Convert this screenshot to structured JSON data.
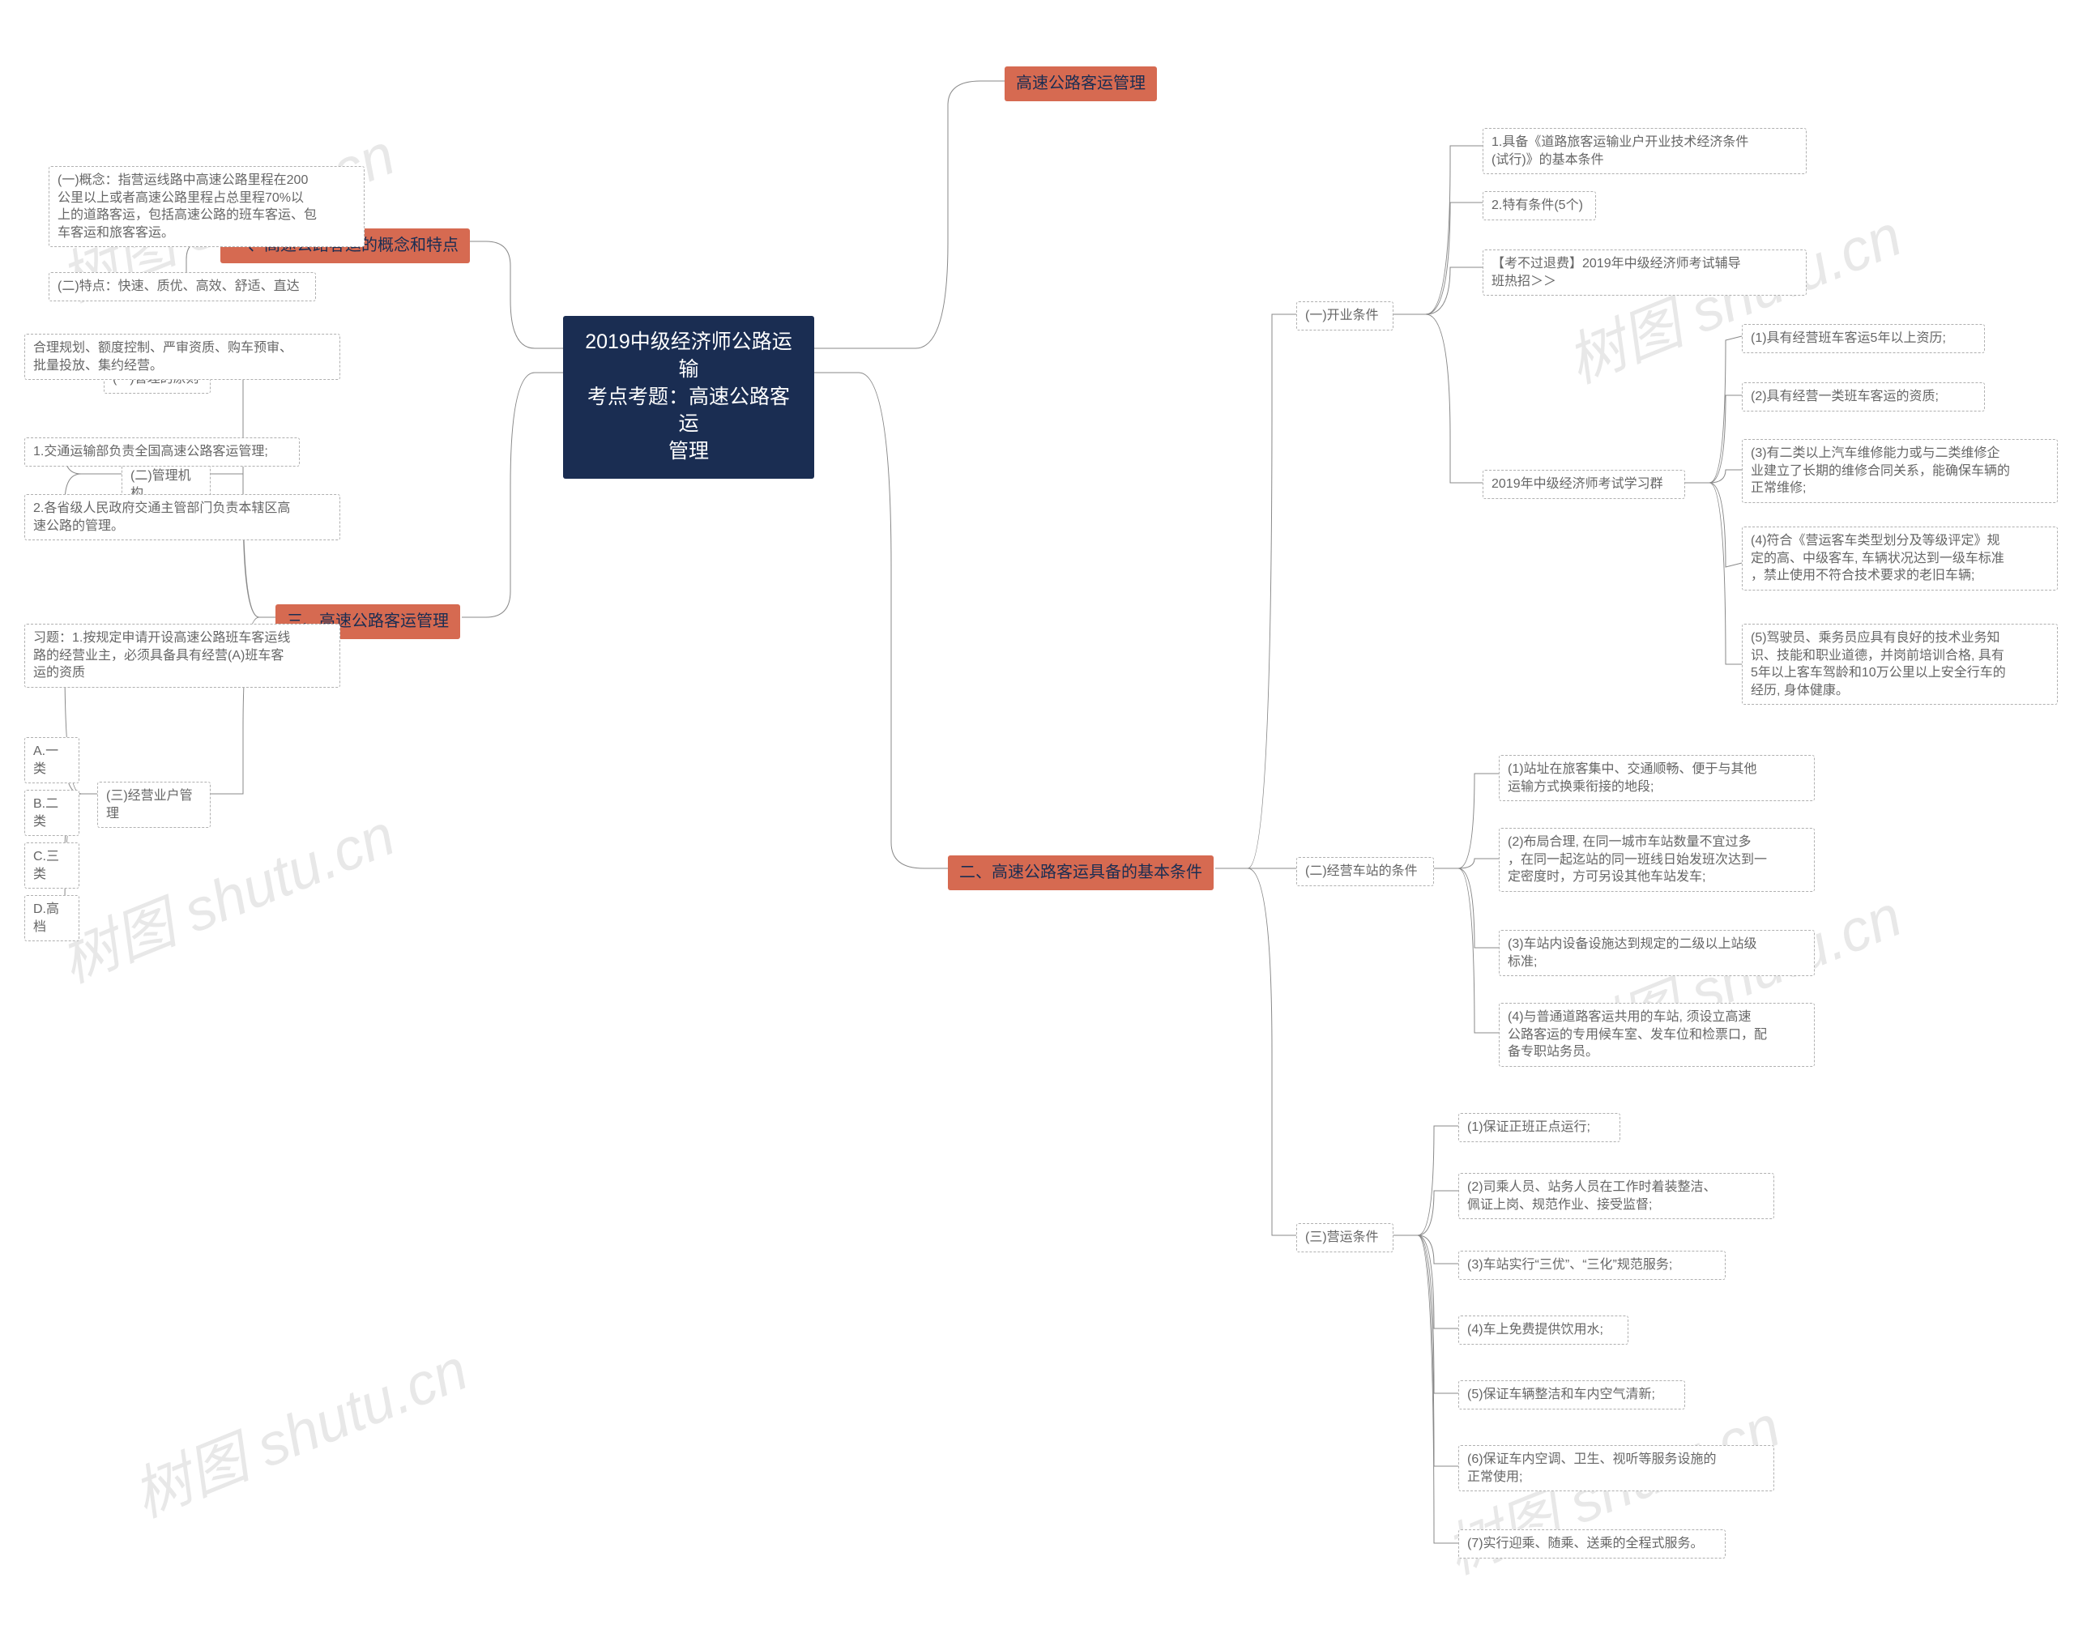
{
  "colors": {
    "root_bg": "#1a2d52",
    "root_fg": "#ffffff",
    "branch_bg": "#d66a51",
    "branch_fg": "#1a2d52",
    "leaf_bg": "#ffffff",
    "leaf_border": "#b0b0b0",
    "leaf_fg": "#666666",
    "edge": "#888888",
    "watermark": "#e8e8e8",
    "page_bg": "#ffffff"
  },
  "typography": {
    "root_fontsize": 25,
    "branch_fontsize": 20,
    "leaf_fontsize": 16,
    "font_family": "Microsoft YaHei"
  },
  "watermark_text": "树图 shutu.cn",
  "root": {
    "label": "2019中级经济师公路运输\n考点考题：高速公路客运\n管理"
  },
  "left": {
    "b1": {
      "label": "一、高速公路客运的概念和特点",
      "c1": "(一)概念：指营运线路中高速公路里程在200\n公里以上或者高速公路里程占总里程70%以\n上的道路客运，包括高速公路的班车客运、包\n车客运和旅客客运。",
      "c2": "(二)特点：快速、质优、高效、舒适、直达"
    },
    "b3": {
      "label": "三、高速公路客运管理",
      "c1": {
        "label": "(一)管理的原则",
        "d1": "合理规划、额度控制、严审资质、购车预审、\n批量投放、集约经营。"
      },
      "c2": {
        "label": "(二)管理机构",
        "d1": "1.交通运输部负责全国高速公路客运管理;",
        "d2": "2.各省级人民政府交通主管部门负责本辖区高\n速公路的管理。"
      },
      "c3": {
        "label": "(三)经营业户管理",
        "pre": "习题：1.按规定申请开设高速公路班车客运线\n路的经营业主，必须具备具有经营(A)班车客\n运的资质",
        "d1": "A.一类",
        "d2": "B.二类",
        "d3": "C.三类",
        "d4": "D.高档"
      }
    }
  },
  "right": {
    "b0": {
      "label": "高速公路客运管理"
    },
    "b2": {
      "label": "二、高速公路客运具备的基本条件",
      "c1": {
        "label": "(一)开业条件",
        "d1": "1.具备《道路旅客运输业户开业技术经济条件\n(试行)》的基本条件",
        "d2": "2.特有条件(5个)",
        "d3": "【考不过退费】2019年中级经济师考试辅导\n班热招＞＞",
        "g": {
          "label": "2019年中级经济师考试学习群",
          "e1": "(1)具有经营班车客运5年以上资历;",
          "e2": "(2)具有经营一类班车客运的资质;",
          "e3": "(3)有二类以上汽车维修能力或与二类维修企\n业建立了长期的维修合同关系，能确保车辆的\n正常维修;",
          "e4": "(4)符合《营运客车类型划分及等级评定》规\n定的高、中级客车, 车辆状况达到一级车标准\n，禁止使用不符合技术要求的老旧车辆;",
          "e5": "(5)驾驶员、乘务员应具有良好的技术业务知\n识、技能和职业道德，并岗前培训合格, 具有\n5年以上客车驾龄和10万公里以上安全行车的\n经历, 身体健康。"
        }
      },
      "c2": {
        "label": "(二)经营车站的条件",
        "d1": "(1)站址在旅客集中、交通顺畅、便于与其他\n运输方式换乘衔接的地段;",
        "d2": "(2)布局合理, 在同一城市车站数量不宜过多\n，在同一起迄站的同一班线日始发班次达到一\n定密度时，方可另设其他车站发车;",
        "d3": "(3)车站内设备设施达到规定的二级以上站级\n标准;",
        "d4": "(4)与普通道路客运共用的车站, 须设立高速\n公路客运的专用候车室、发车位和检票口，配\n备专职站务员。"
      },
      "c3": {
        "label": "(三)营运条件",
        "d1": "(1)保证正班正点运行;",
        "d2": "(2)司乘人员、站务人员在工作时着装整洁、\n佩证上岗、规范作业、接受监督;",
        "d3": "(3)车站实行“三优”、“三化”规范服务;",
        "d4": "(4)车上免费提供饮用水;",
        "d5": "(5)保证车辆整洁和车内空气清新;",
        "d6": "(6)保证车内空调、卫生、视听等服务设施的\n正常使用;",
        "d7": "(7)实行迎乘、随乘、送乘的全程式服务。"
      }
    }
  }
}
